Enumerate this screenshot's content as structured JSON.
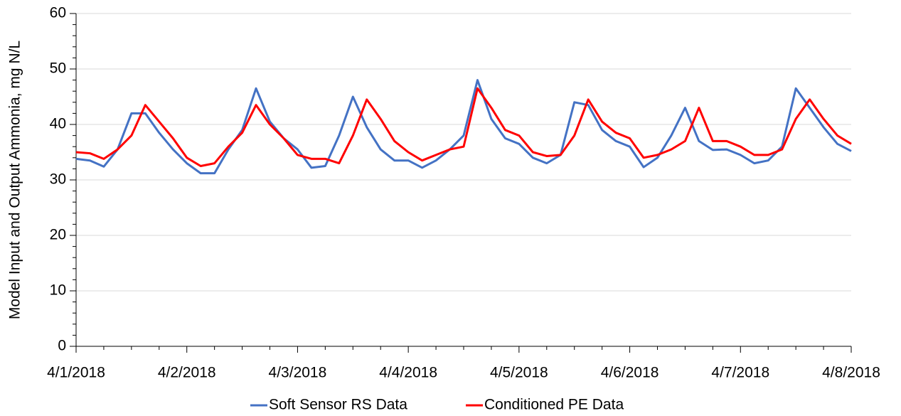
{
  "chart_data": {
    "type": "line",
    "y_label": "Model Input and Output Ammonia, mg N/L",
    "x": [
      0,
      0.125,
      0.25,
      0.375,
      0.5,
      0.625,
      0.75,
      0.875,
      1,
      1.125,
      1.25,
      1.375,
      1.5,
      1.625,
      1.75,
      1.875,
      2,
      2.125,
      2.25,
      2.375,
      2.5,
      2.625,
      2.75,
      2.875,
      3,
      3.125,
      3.25,
      3.375,
      3.5,
      3.625,
      3.75,
      3.875,
      4,
      4.125,
      4.25,
      4.375,
      4.5,
      4.625,
      4.75,
      4.875,
      5,
      5.125,
      5.25,
      5.375,
      5.5,
      5.625,
      5.75,
      5.875,
      6,
      6.125,
      6.25,
      6.375,
      6.5,
      6.625,
      6.75,
      6.875,
      7
    ],
    "series": [
      {
        "name": "Soft Sensor RS Data",
        "color": "#4472c4",
        "values": [
          33.8,
          33.5,
          32.4,
          35.5,
          42,
          42,
          38.5,
          35.5,
          33,
          31.2,
          31.2,
          35.5,
          39,
          46.5,
          40.5,
          37.5,
          35.5,
          32.2,
          32.5,
          38,
          45,
          39.5,
          35.5,
          33.5,
          33.5,
          32.2,
          33.5,
          35.5,
          38,
          48,
          41,
          37.5,
          36.5,
          34,
          33,
          34.5,
          44,
          43.5,
          39,
          37,
          36,
          32.3,
          34,
          38,
          43,
          37,
          35.4,
          35.5,
          34.5,
          33,
          33.5,
          36,
          46.5,
          43,
          39.5,
          36.5,
          35.2
        ]
      },
      {
        "name": "Conditioned PE Data",
        "color": "#ff0000",
        "values": [
          35,
          34.8,
          33.8,
          35.5,
          38,
          43.5,
          40.5,
          37.5,
          34,
          32.5,
          33,
          36,
          38.5,
          43.5,
          40,
          37.5,
          34.5,
          33.8,
          33.8,
          33,
          38,
          44.5,
          41,
          37,
          35,
          33.5,
          34.5,
          35.5,
          36,
          46.5,
          43,
          39,
          38,
          35,
          34.3,
          34.5,
          38,
          44.5,
          40.5,
          38.5,
          37.5,
          34,
          34.5,
          35.5,
          37,
          43,
          37,
          37,
          36,
          34.5,
          34.5,
          35.5,
          41,
          44.5,
          41,
          38,
          36.5
        ]
      }
    ],
    "xlim": [
      0,
      7
    ],
    "xticks": [
      {
        "value": 0,
        "label": "4/1/2018"
      },
      {
        "value": 1,
        "label": "4/2/2018"
      },
      {
        "value": 2,
        "label": "4/3/2018"
      },
      {
        "value": 3,
        "label": "4/4/2018"
      },
      {
        "value": 4,
        "label": "4/5/2018"
      },
      {
        "value": 5,
        "label": "4/6/2018"
      },
      {
        "value": 6,
        "label": "4/7/2018"
      },
      {
        "value": 7,
        "label": "4/8/2018"
      }
    ],
    "xminorticks": [
      0.25,
      0.5,
      0.75,
      1.25,
      1.5,
      1.75,
      2.25,
      2.5,
      2.75,
      3.25,
      3.5,
      3.75,
      4.25,
      4.5,
      4.75,
      5.25,
      5.5,
      5.75,
      6.25,
      6.5,
      6.75
    ],
    "ylim": [
      0,
      60
    ],
    "yticks": [
      0,
      10,
      20,
      30,
      40,
      50,
      60
    ],
    "yminorticks": [
      2,
      4,
      6,
      8,
      12,
      14,
      16,
      18,
      22,
      24,
      26,
      28,
      32,
      34,
      36,
      38,
      42,
      44,
      46,
      48,
      52,
      54,
      56,
      58
    ],
    "grid": true,
    "legend": "bottom"
  }
}
